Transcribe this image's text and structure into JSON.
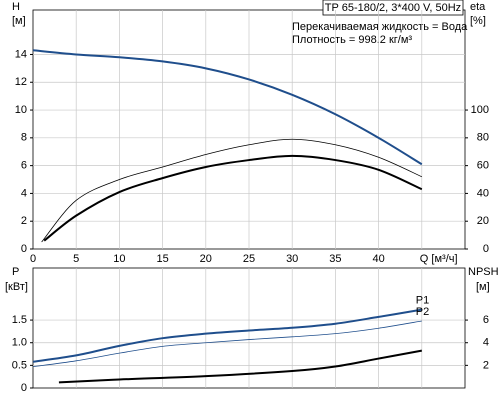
{
  "chart_data": [
    {
      "type": "line",
      "title": "TP 65-180/2, 3*400 V, 50Hz",
      "annotations": [
        "Перекачиваемая жидкость = Вода",
        "Плотность = 998.2 кг/м³"
      ],
      "ylabel": "H",
      "yunit": "[м]",
      "y2label": "eta",
      "y2unit": "[%]",
      "xlim": [
        0,
        50
      ],
      "ylim": [
        0,
        17.2
      ],
      "y2lim": [
        0,
        172
      ],
      "xticks": [
        0,
        5,
        10,
        15,
        20,
        25,
        30,
        35,
        40,
        {
          "value": 45,
          "label": "Q [м³/ч]"
        }
      ],
      "yticks": [
        0,
        2,
        4,
        6,
        8,
        10,
        12,
        14
      ],
      "y2ticks": [
        0,
        20,
        40,
        60,
        80,
        100
      ],
      "grid": true,
      "series": [
        {
          "color": "#1f4e8c",
          "width": 2,
          "x": [
            0,
            5,
            10,
            15,
            20,
            25,
            30,
            35,
            40,
            45
          ],
          "values": [
            14.3,
            14.0,
            13.8,
            13.5,
            13.0,
            12.2,
            11.1,
            9.7,
            8.0,
            6.1
          ]
        },
        {
          "color": "#000000",
          "width": 0.8,
          "axis": "y2",
          "x": [
            1,
            5,
            10,
            15,
            20,
            25,
            30,
            35,
            40,
            45
          ],
          "values": [
            5,
            35,
            50,
            59,
            68,
            75,
            79,
            75,
            66,
            52
          ]
        },
        {
          "color": "#000000",
          "width": 2,
          "axis": "y2",
          "x": [
            1.3,
            5,
            10,
            15,
            20,
            25,
            30,
            35,
            40,
            45
          ],
          "values": [
            6,
            24,
            41,
            51,
            59,
            64,
            67,
            64,
            57,
            43
          ]
        }
      ]
    },
    {
      "type": "line",
      "ylabel": "P",
      "yunit": "[кВт]",
      "y2label": "NPSH",
      "y2unit": "[м]",
      "xlim": [
        0,
        50
      ],
      "ylim": [
        0,
        2.65
      ],
      "y2lim": [
        0,
        10.6
      ],
      "yticks": [
        0,
        0.5,
        {
          "value": 1,
          "label": "1.0"
        },
        1.5
      ],
      "y2ticks": [
        2,
        4,
        6
      ],
      "grid": true,
      "series": [
        {
          "name": "P1",
          "color": "#1f4e8c",
          "width": 2,
          "x": [
            0,
            5,
            10,
            15,
            20,
            25,
            30,
            35,
            40,
            45
          ],
          "values": [
            0.58,
            0.72,
            0.93,
            1.1,
            1.2,
            1.27,
            1.33,
            1.42,
            1.57,
            1.73
          ]
        },
        {
          "name": "P2",
          "color": "#1f4e8c",
          "width": 0.8,
          "x": [
            0,
            5,
            10,
            15,
            20,
            25,
            30,
            35,
            40,
            45
          ],
          "values": [
            0.47,
            0.6,
            0.77,
            0.92,
            1.0,
            1.07,
            1.13,
            1.2,
            1.32,
            1.48
          ]
        },
        {
          "color": "#000000",
          "width": 2,
          "axis": "y2",
          "x": [
            3,
            10,
            20,
            30,
            35,
            40,
            45
          ],
          "values": [
            0.5,
            0.75,
            1.05,
            1.5,
            1.9,
            2.6,
            3.3
          ]
        }
      ]
    }
  ]
}
